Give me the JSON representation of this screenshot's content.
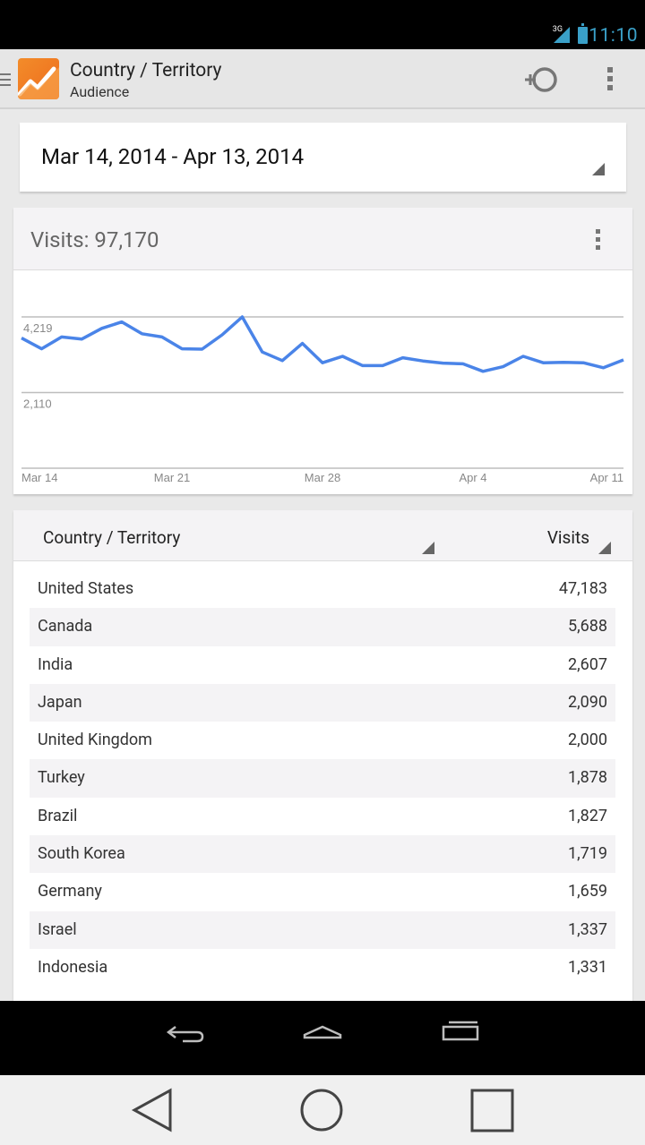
{
  "status_bar": {
    "network": "3G",
    "time": "11:10"
  },
  "action_bar": {
    "title": "Country / Territory",
    "subtitle": "Audience"
  },
  "date_range": "Mar 14, 2014 - Apr 13, 2014",
  "chart_card": {
    "title": "Visits: 97,170"
  },
  "chart_data": {
    "type": "line",
    "y_tick_labels": [
      "4,219",
      "2,110"
    ],
    "x_tick_labels": [
      "Mar 14",
      "Mar 21",
      "Mar 28",
      "Apr 4",
      "Apr 11"
    ],
    "y_ticks": [
      0,
      2110,
      4219
    ],
    "ylim": [
      0,
      4219
    ],
    "grid": true,
    "series": [
      {
        "values": [
          3630,
          3330,
          3660,
          3600,
          3900,
          4080,
          3750,
          3660,
          3330,
          3320,
          3720,
          4219,
          3240,
          3000,
          3480,
          2940,
          3120,
          2860,
          2860,
          3080,
          2990,
          2930,
          2910,
          2700,
          2830,
          3120,
          2940,
          2950,
          2940,
          2800,
          3020
        ]
      }
    ],
    "color": "#4a84e8"
  },
  "table": {
    "col_country": "Country / Territory",
    "col_visits": "Visits",
    "rows": [
      {
        "country": "United States",
        "visits": "47,183"
      },
      {
        "country": "Canada",
        "visits": "5,688"
      },
      {
        "country": "India",
        "visits": "2,607"
      },
      {
        "country": "Japan",
        "visits": "2,090"
      },
      {
        "country": "United Kingdom",
        "visits": "2,000"
      },
      {
        "country": "Turkey",
        "visits": "1,878"
      },
      {
        "country": "Brazil",
        "visits": "1,827"
      },
      {
        "country": "South Korea",
        "visits": "1,719"
      },
      {
        "country": "Germany",
        "visits": "1,659"
      },
      {
        "country": "Israel",
        "visits": "1,337"
      },
      {
        "country": "Indonesia",
        "visits": "1,331"
      }
    ]
  },
  "icons": {
    "drawer": "menu-drawer-icon",
    "logo": "analytics-logo-icon",
    "segment": "add-segment-icon",
    "overflow": "overflow-menu-icon",
    "back": "back-icon",
    "home": "home-icon",
    "recents": "recents-icon"
  }
}
